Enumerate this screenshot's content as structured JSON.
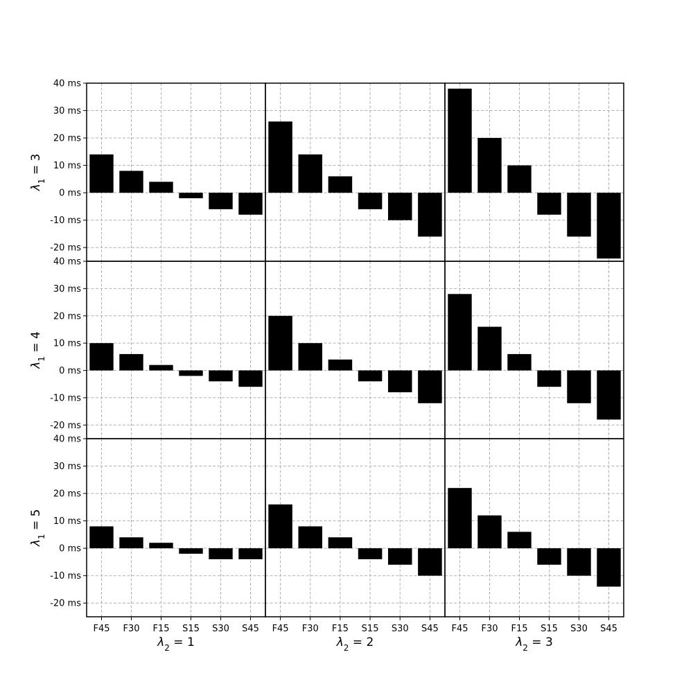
{
  "chart_data": {
    "type": "bar",
    "layout": "3x3 grid of bar subplots, shared axes",
    "categories": [
      "F45",
      "F30",
      "F15",
      "S15",
      "S30",
      "S45"
    ],
    "ylim": [
      -25,
      40
    ],
    "yticks": [
      -20,
      -10,
      0,
      10,
      20,
      30,
      40
    ],
    "ytick_labels": [
      "-20 ms",
      "-10 ms",
      "0 ms",
      "10 ms",
      "20 ms",
      "30 ms",
      "40 ms"
    ],
    "grid": true,
    "bar_color": "#000000",
    "row_labels": [
      {
        "symbol": "λ",
        "sub": "1",
        "eq": " = ",
        "value": "3"
      },
      {
        "symbol": "λ",
        "sub": "1",
        "eq": " = ",
        "value": "4"
      },
      {
        "symbol": "λ",
        "sub": "1",
        "eq": " = ",
        "value": "5"
      }
    ],
    "col_labels": [
      {
        "symbol": "λ",
        "sub": "2",
        "eq": " = ",
        "value": "1"
      },
      {
        "symbol": "λ",
        "sub": "2",
        "eq": " = ",
        "value": "2"
      },
      {
        "symbol": "λ",
        "sub": "2",
        "eq": " = ",
        "value": "3"
      }
    ],
    "panels": [
      [
        {
          "values": [
            14,
            8,
            4,
            -2,
            -6,
            -8
          ]
        },
        {
          "values": [
            26,
            14,
            6,
            -6,
            -10,
            -16
          ]
        },
        {
          "values": [
            38,
            20,
            10,
            -8,
            -16,
            -24
          ]
        }
      ],
      [
        {
          "values": [
            10,
            6,
            2,
            -2,
            -4,
            -6
          ]
        },
        {
          "values": [
            20,
            10,
            4,
            -4,
            -8,
            -12
          ]
        },
        {
          "values": [
            28,
            16,
            6,
            -6,
            -12,
            -18
          ]
        }
      ],
      [
        {
          "values": [
            8,
            4,
            2,
            -2,
            -4,
            -4
          ]
        },
        {
          "values": [
            16,
            8,
            4,
            -4,
            -6,
            -10
          ]
        },
        {
          "values": [
            22,
            12,
            6,
            -6,
            -10,
            -14
          ]
        }
      ]
    ]
  }
}
